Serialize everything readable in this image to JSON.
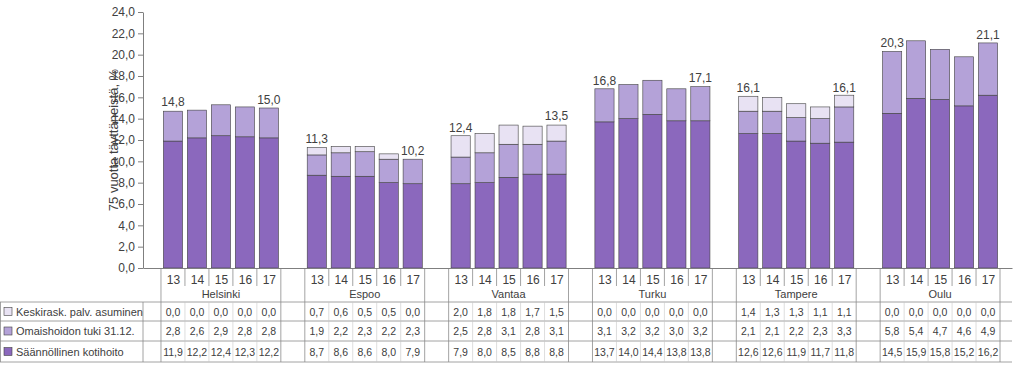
{
  "chart_data": {
    "type": "bar",
    "stacked": true,
    "grid": false,
    "legend": "bottom",
    "y_label": "75 vuotta täyttäneistä, %",
    "categories": [
      "13",
      "14",
      "15",
      "16",
      "17",
      "13",
      "14",
      "15",
      "16",
      "17",
      "13",
      "14",
      "15",
      "16",
      "17",
      "13",
      "14",
      "15",
      "16",
      "17",
      "13",
      "14",
      "15",
      "16",
      "17",
      "13",
      "14",
      "15",
      "16",
      "17"
    ],
    "groups": [
      "Helsinki",
      "Espoo",
      "Vantaa",
      "Turku",
      "Tampere",
      "Oulu"
    ],
    "ylim": [
      0,
      24
    ],
    "yticks": [
      {
        "value": 0,
        "label": "0,0"
      },
      {
        "value": 2,
        "label": "2,0"
      },
      {
        "value": 4,
        "label": "4,0"
      },
      {
        "value": 6,
        "label": "6,0"
      },
      {
        "value": 8,
        "label": "8,0"
      },
      {
        "value": 10,
        "label": "10,0"
      },
      {
        "value": 12,
        "label": "12,0"
      },
      {
        "value": 14,
        "label": "14,0"
      },
      {
        "value": 16,
        "label": "16,0"
      },
      {
        "value": 18,
        "label": "18,0"
      },
      {
        "value": 20,
        "label": "20,0"
      },
      {
        "value": 22,
        "label": "22,0"
      },
      {
        "value": 24,
        "label": "24,0"
      }
    ],
    "series": [
      {
        "name": "Säännöllinen kotihoito",
        "color": "#8b68bd",
        "values": [
          11.9,
          12.2,
          12.4,
          12.3,
          12.2,
          8.7,
          8.6,
          8.6,
          8.0,
          7.9,
          7.9,
          8.0,
          8.5,
          8.8,
          8.8,
          13.7,
          14.0,
          14.4,
          13.8,
          13.8,
          12.6,
          12.6,
          11.9,
          11.7,
          11.8,
          14.5,
          15.9,
          15.8,
          15.2,
          16.2
        ],
        "value_labels": [
          "11,9",
          "12,2",
          "12,4",
          "12,3",
          "12,2",
          "8,7",
          "8,6",
          "8,6",
          "8,0",
          "7,9",
          "7,9",
          "8,0",
          "8,5",
          "8,8",
          "8,8",
          "13,7",
          "14,0",
          "14,4",
          "13,8",
          "13,8",
          "12,6",
          "12,6",
          "11,9",
          "11,7",
          "11,8",
          "14,5",
          "15,9",
          "15,8",
          "15,2",
          "16,2"
        ]
      },
      {
        "name": "Omaishoidon tuki 31.12.",
        "color": "#b4a2d8",
        "values": [
          2.8,
          2.6,
          2.9,
          2.8,
          2.8,
          1.9,
          2.2,
          2.3,
          2.2,
          2.3,
          2.5,
          2.8,
          3.1,
          2.8,
          3.1,
          3.1,
          3.2,
          3.2,
          3.0,
          3.2,
          2.1,
          2.1,
          2.2,
          2.3,
          3.3,
          5.8,
          5.4,
          4.7,
          4.6,
          4.9
        ],
        "value_labels": [
          "2,8",
          "2,6",
          "2,9",
          "2,8",
          "2,8",
          "1,9",
          "2,2",
          "2,3",
          "2,2",
          "2,3",
          "2,5",
          "2,8",
          "3,1",
          "2,8",
          "3,1",
          "3,1",
          "3,2",
          "3,2",
          "3,0",
          "3,2",
          "2,1",
          "2,1",
          "2,2",
          "2,3",
          "3,3",
          "5,8",
          "5,4",
          "4,7",
          "4,6",
          "4,9"
        ]
      },
      {
        "name": "Keskirask. palv. asuminen",
        "color": "#e8e2f3",
        "values": [
          0.0,
          0.0,
          0.0,
          0.0,
          0.0,
          0.7,
          0.6,
          0.5,
          0.5,
          0.0,
          2.0,
          1.8,
          1.8,
          1.7,
          1.5,
          0.0,
          0.0,
          0.0,
          0.0,
          0.0,
          1.4,
          1.3,
          1.3,
          1.1,
          1.1,
          0.0,
          0.0,
          0.0,
          0.0,
          0.0
        ],
        "value_labels": [
          "0,0",
          "0,0",
          "0,0",
          "0,0",
          "0,0",
          "0,7",
          "0,6",
          "0,5",
          "0,5",
          "0,0",
          "2,0",
          "1,8",
          "1,8",
          "1,7",
          "1,5",
          "0,0",
          "0,0",
          "0,0",
          "0,0",
          "0,0",
          "1,4",
          "1,3",
          "1,3",
          "1,1",
          "1,1",
          "0,0",
          "0,0",
          "0,0",
          "0,0",
          "0,0"
        ]
      }
    ],
    "totals": [
      14.8,
      null,
      null,
      null,
      15.0,
      11.3,
      null,
      null,
      null,
      10.2,
      12.4,
      null,
      null,
      null,
      13.5,
      16.8,
      null,
      null,
      null,
      17.1,
      16.1,
      null,
      null,
      null,
      16.1,
      20.3,
      null,
      null,
      null,
      21.1
    ],
    "total_labels": [
      "14,8",
      null,
      null,
      null,
      "15,0",
      "11,3",
      null,
      null,
      null,
      "10,2",
      "12,4",
      null,
      null,
      null,
      "13,5",
      "16,8",
      null,
      null,
      null,
      "17,1",
      "16,1",
      null,
      null,
      null,
      "16,1",
      "20,3",
      null,
      null,
      null,
      "21,1"
    ]
  }
}
